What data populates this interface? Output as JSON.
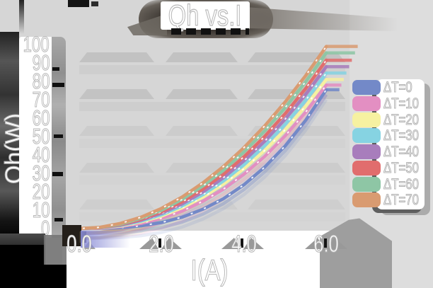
{
  "title": "Qh vs.I",
  "x_axis": {
    "label": "I(A)",
    "ticks": [
      "0.0",
      "2.0",
      "4.0",
      "6.0"
    ],
    "tick_values": [
      0,
      2,
      4,
      6
    ]
  },
  "y_axis": {
    "label": "Qh(W)",
    "ticks": [
      "100",
      "90",
      "80",
      "70",
      "60",
      "50",
      "40",
      "30",
      "20",
      "10",
      "0"
    ],
    "tick_values": [
      100,
      90,
      80,
      70,
      60,
      50,
      40,
      30,
      20,
      10,
      0
    ]
  },
  "legend": {
    "items": [
      {
        "label": "ΔT=0",
        "color": "#7389c8"
      },
      {
        "label": "ΔT=10",
        "color": "#e38fc2"
      },
      {
        "label": "ΔT=20",
        "color": "#f6f1a1"
      },
      {
        "label": "ΔT=30",
        "color": "#86d3e2"
      },
      {
        "label": "ΔT=40",
        "color": "#a87dbc"
      },
      {
        "label": "ΔT=50",
        "color": "#e16d6d"
      },
      {
        "label": "ΔT=60",
        "color": "#8ec6a5"
      },
      {
        "label": "ΔT=70",
        "color": "#d99b71"
      }
    ]
  },
  "chart_data": {
    "type": "line",
    "title": "Qh vs.I",
    "xlabel": "I(A)",
    "ylabel": "Qh(W)",
    "x": [
      0,
      0.5,
      1,
      1.5,
      2,
      2.5,
      3,
      3.5,
      4,
      4.5,
      5,
      5.5,
      6
    ],
    "series": [
      {
        "name": "ΔT=0",
        "color": "#7389c8",
        "values": [
          0,
          0.1,
          0.5,
          1.5,
          3.3,
          6.2,
          10.5,
          16.2,
          23.8,
          33.3,
          44.9,
          58.9,
          75.5
        ]
      },
      {
        "name": "ΔT=10",
        "color": "#e38fc2",
        "values": [
          0,
          0.2,
          1.1,
          2.8,
          5.6,
          9.5,
          14.8,
          21.4,
          29.5,
          39.1,
          50.4,
          63.3,
          78.0
        ]
      },
      {
        "name": "ΔT=20",
        "color": "#f6f1a1",
        "values": [
          0,
          0.3,
          1.4,
          3.6,
          6.8,
          11.3,
          17.0,
          24.1,
          32.5,
          42.4,
          53.7,
          66.6,
          81.0
        ]
      },
      {
        "name": "ΔT=30",
        "color": "#86d3e2",
        "values": [
          0,
          0.4,
          1.6,
          4.0,
          7.5,
          12.3,
          18.4,
          25.8,
          34.6,
          44.9,
          56.6,
          69.8,
          84.5
        ]
      },
      {
        "name": "ΔT=40",
        "color": "#a87dbc",
        "values": [
          0,
          0.4,
          1.9,
          4.5,
          8.3,
          13.4,
          19.8,
          27.6,
          36.8,
          47.4,
          59.5,
          73.0,
          88.0
        ]
      },
      {
        "name": "ΔT=50",
        "color": "#e16d6d",
        "values": [
          0,
          0.5,
          2.1,
          5.0,
          9.1,
          14.5,
          21.3,
          29.5,
          39.0,
          50.0,
          62.4,
          76.2,
          91.5
        ]
      },
      {
        "name": "ΔT=60",
        "color": "#8ec6a5",
        "values": [
          0,
          0.6,
          2.4,
          5.6,
          10.0,
          15.9,
          23.1,
          31.6,
          41.6,
          53.0,
          65.7,
          79.9,
          95.5
        ]
      },
      {
        "name": "ΔT=70",
        "color": "#d99b71",
        "values": [
          0,
          0.7,
          2.8,
          6.2,
          11.0,
          17.2,
          24.8,
          33.7,
          44.0,
          55.7,
          68.8,
          83.2,
          99.0
        ]
      }
    ],
    "xlim": [
      0,
      6.4
    ],
    "ylim": [
      0,
      100
    ],
    "grid": "horizontal bands above gridlines at 10, 30, 50, 70, 90",
    "legend_position": "right"
  }
}
